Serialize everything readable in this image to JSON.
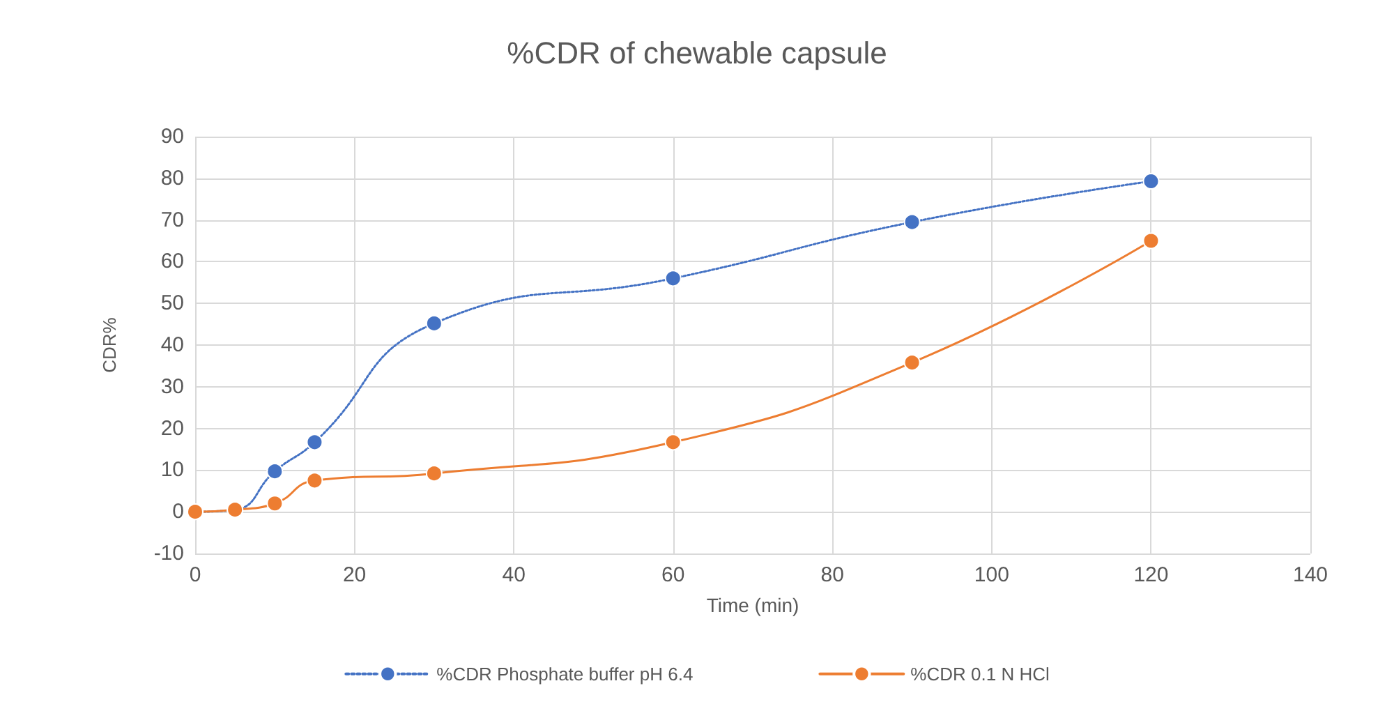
{
  "chart_data": {
    "type": "line",
    "title": "%CDR of chewable capsule",
    "xlabel": "Time (min)",
    "ylabel": "CDR%",
    "x": [
      0,
      5,
      10,
      15,
      30,
      60,
      90,
      120
    ],
    "series": [
      {
        "name": "%CDR Phosphate buffer pH 6.4",
        "color": "#4472c4",
        "line_style": "dotted",
        "values": [
          0,
          0.5,
          9.7,
          16.7,
          45.2,
          56,
          69.5,
          79.3
        ]
      },
      {
        "name": "%CDR 0.1 N HCl",
        "color": "#ed7d31",
        "line_style": "solid",
        "values": [
          0,
          0.5,
          2,
          7.5,
          9.2,
          16.7,
          35.8,
          65
        ]
      }
    ],
    "xlim": [
      0,
      140
    ],
    "xticks": [
      0,
      20,
      40,
      60,
      80,
      100,
      120,
      140
    ],
    "ylim": [
      -10,
      90
    ],
    "yticks": [
      -10,
      0,
      10,
      20,
      30,
      40,
      50,
      60,
      70,
      80,
      90
    ],
    "grid": true,
    "legend": "bottom",
    "marker": "circle"
  }
}
